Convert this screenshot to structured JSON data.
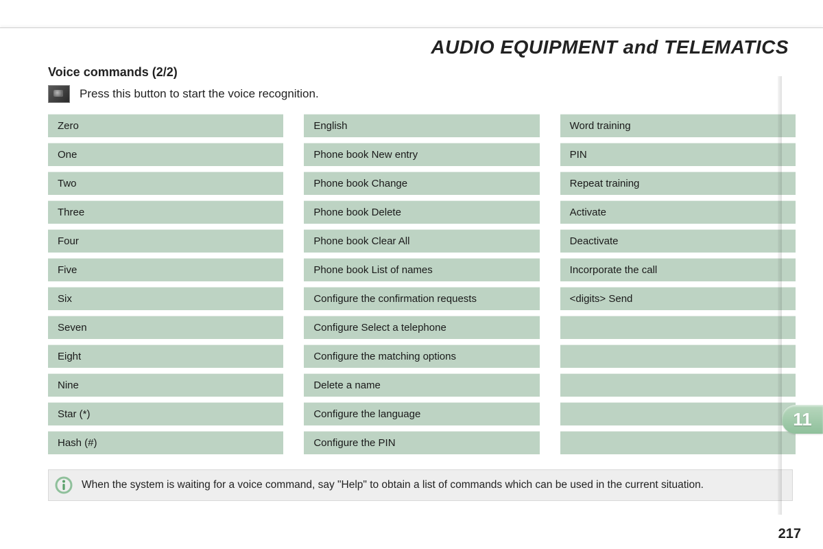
{
  "header": {
    "title": "AUDIO EQUIPMENT and TELEMATICS"
  },
  "subtitle": "Voice commands (2/2)",
  "instruction": "Press this button to start the voice recognition.",
  "colors": {
    "cell_bg": "#bdd3c3",
    "cell_bg_alt": "#bdd3c3",
    "info_bg": "#eeeeee",
    "tab_bg_top": "#b9d7be",
    "tab_bg_bottom": "#8fc09b",
    "info_icon_ring": "#8fc09b",
    "info_icon_i": "#5aa06a"
  },
  "columns": [
    [
      "Zero",
      "One",
      "Two",
      "Three",
      "Four",
      "Five",
      "Six",
      "Seven",
      "Eight",
      "Nine",
      "Star (*)",
      "Hash (#)"
    ],
    [
      "English",
      "Phone book New entry",
      "Phone book Change",
      "Phone book Delete",
      "Phone book Clear All",
      "Phone book List of names",
      "Configure the confirmation requests",
      "Configure Select a telephone",
      "Configure the matching options",
      "Delete a name",
      "Configure the language",
      "Configure the PIN"
    ],
    [
      "Word training",
      "PIN",
      "Repeat training",
      "Activate",
      "Deactivate",
      "Incorporate the call",
      "<digits> Send",
      "",
      "",
      "",
      "",
      ""
    ]
  ],
  "info_text": "When the system is waiting for a voice command, say \"Help\" to obtain a list of commands which can be used in the current situation.",
  "tab": {
    "number": "11"
  },
  "page_number": "217"
}
